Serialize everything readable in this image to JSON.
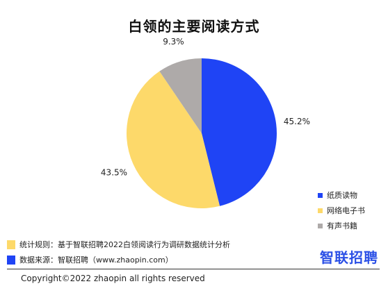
{
  "chart_data": {
    "type": "pie",
    "title": "白领的主要阅读方式",
    "series": [
      {
        "name": "纸质读物",
        "value": 45.2,
        "label": "45.2%",
        "color": "#1f44f5"
      },
      {
        "name": "网络电子书",
        "value": 43.5,
        "label": "43.5%",
        "color": "#fdd96a"
      },
      {
        "name": "有声书籍",
        "value": 9.3,
        "label": "9.3%",
        "color": "#aeaaa9"
      }
    ],
    "legend_position": "bottom-right"
  },
  "notes": [
    {
      "text": "统计规则：基于智联招聘2022白领阅读行为调研数据统计分析",
      "color": "#fdd96a"
    },
    {
      "text": "数据来源：智联招聘（www.zhaopin.com）",
      "color": "#1f44f5"
    }
  ],
  "logo": "智联招聘",
  "copyright": "Copyright©2022 zhaopin all rights reserved"
}
